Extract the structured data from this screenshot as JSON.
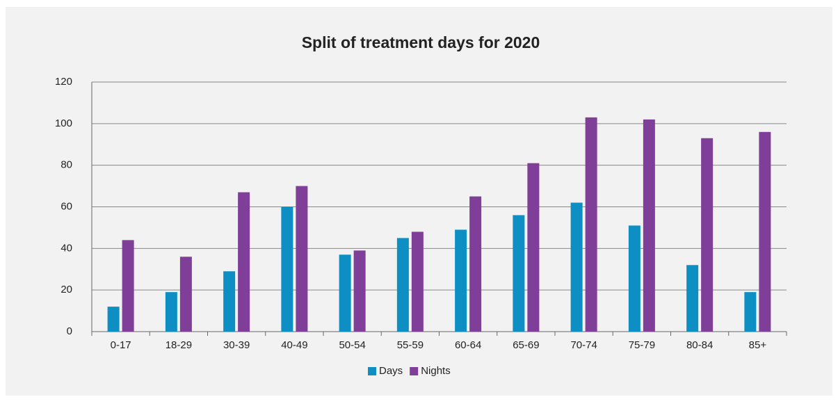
{
  "chart_data": {
    "type": "bar",
    "title": "Split of treatment days for 2020",
    "categories": [
      "0-17",
      "18-29",
      "30-39",
      "40-49",
      "50-54",
      "55-59",
      "60-64",
      "65-69",
      "70-74",
      "75-79",
      "80-84",
      "85+"
    ],
    "series": [
      {
        "name": "Days",
        "color": "#0e8fc4",
        "values": [
          12,
          19,
          29,
          60,
          37,
          45,
          49,
          56,
          62,
          51,
          32,
          19
        ]
      },
      {
        "name": "Nights",
        "color": "#7f3f98",
        "values": [
          44,
          36,
          67,
          70,
          39,
          48,
          65,
          81,
          103,
          102,
          93,
          96
        ]
      }
    ],
    "ylim": [
      0,
      120
    ],
    "yticks": [
      0,
      20,
      40,
      60,
      80,
      100,
      120
    ],
    "grid": true,
    "legend": "bottom"
  }
}
